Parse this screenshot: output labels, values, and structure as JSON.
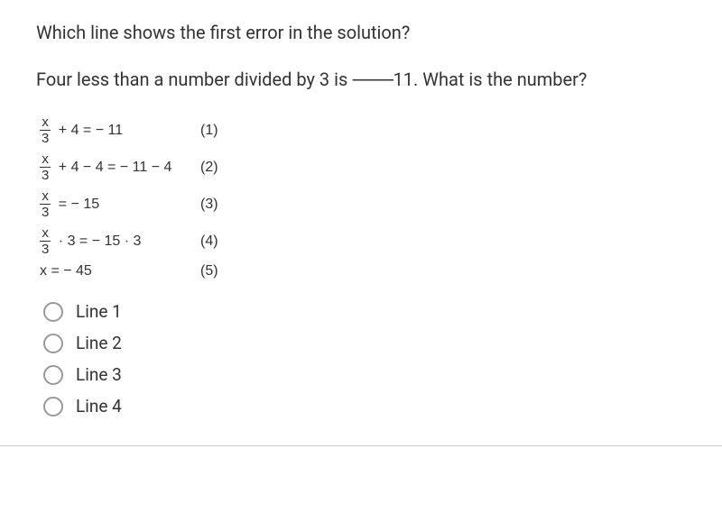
{
  "title": "Which line shows the first error in the solution?",
  "problem": {
    "prefix": "Four less than a number divided by 3 is ",
    "dashes": "----------",
    "suffix": "11. What is the number?"
  },
  "equations": [
    {
      "frac_num": "x",
      "frac_den": "3",
      "rest": " + 4 = − 11",
      "num": "(1)"
    },
    {
      "frac_num": "x",
      "frac_den": "3",
      "rest": " + 4 − 4 = − 11 − 4",
      "num": "(2)"
    },
    {
      "frac_num": "x",
      "frac_den": "3",
      "rest": " = − 15",
      "num": "(3)"
    },
    {
      "frac_num": "x",
      "frac_den": "3",
      "rest": " · 3 = − 15 · 3",
      "num": "(4)"
    },
    {
      "plain": "x = − 45",
      "num": "(5)"
    }
  ],
  "options": [
    {
      "label": "Line 1"
    },
    {
      "label": "Line 2"
    },
    {
      "label": "Line 3"
    },
    {
      "label": "Line 4"
    }
  ],
  "colors": {
    "background": "#ffffff",
    "text": "#333333",
    "radio_border": "#999999",
    "divider": "#cccccc"
  }
}
